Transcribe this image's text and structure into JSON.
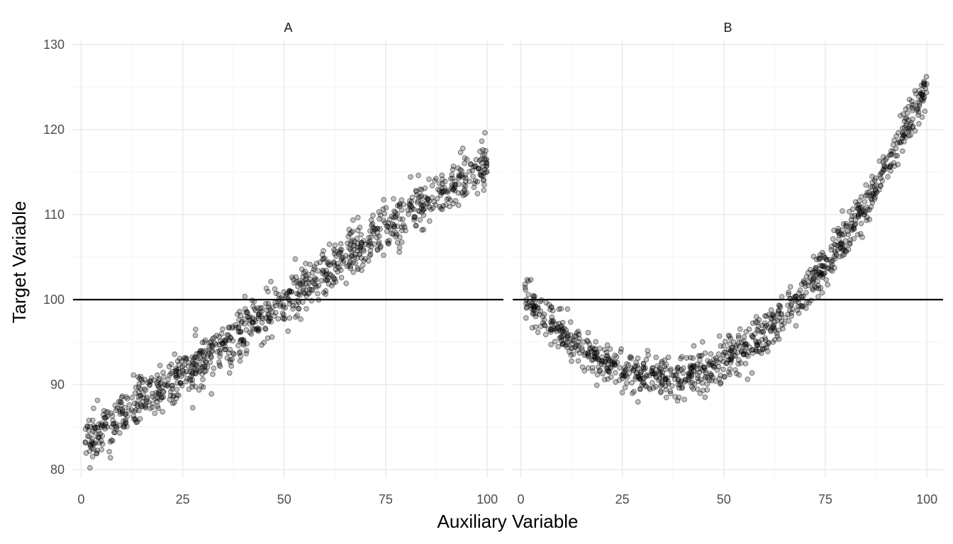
{
  "chart_data": {
    "type": "scatter",
    "xlabel": "Auxiliary Variable",
    "ylabel": "Target Variable",
    "xlim": [
      -2,
      104
    ],
    "ylim": [
      79,
      130.5
    ],
    "x_ticks": [
      0,
      25,
      50,
      75,
      100
    ],
    "y_ticks": [
      80,
      90,
      100,
      110,
      120,
      130
    ],
    "x_tick_labels": [
      "0",
      "25",
      "50",
      "75",
      "100"
    ],
    "y_tick_labels": [
      "80",
      "90",
      "100",
      "110",
      "120",
      "130"
    ],
    "grid": true,
    "reference_line": {
      "orientation": "horizontal",
      "y": 100
    },
    "point_count_per_panel": 1000,
    "panels": [
      {
        "label": "A",
        "relationship": "linear",
        "trend": {
          "form": "y = a + b*x",
          "a": 83,
          "b": 0.335
        },
        "noise_sd": 1.5
      },
      {
        "label": "B",
        "relationship": "quadratic",
        "trend": {
          "form": "y = c + d*(x - h)^2",
          "c": 91,
          "d": 0.00815,
          "h": 35
        },
        "noise_sd": 1.2
      }
    ]
  }
}
